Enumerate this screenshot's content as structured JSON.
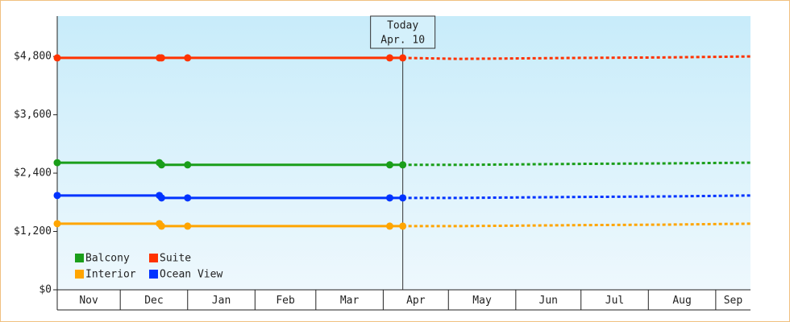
{
  "chart_data": {
    "type": "line",
    "x": [
      0,
      47,
      48,
      60,
      153,
      159,
      185,
      240,
      279,
      319
    ],
    "xlim": [
      0,
      319
    ],
    "xticks": [
      {
        "value": 0,
        "label": "Nov"
      },
      {
        "value": 29,
        "label": "Dec"
      },
      {
        "value": 60,
        "label": "Jan"
      },
      {
        "value": 91,
        "label": "Feb"
      },
      {
        "value": 119,
        "label": "Mar"
      },
      {
        "value": 150,
        "label": "Apr"
      },
      {
        "value": 180,
        "label": "May"
      },
      {
        "value": 211,
        "label": "Jun"
      },
      {
        "value": 241,
        "label": "Jul"
      },
      {
        "value": 272,
        "label": "Aug"
      },
      {
        "value": 303,
        "label": "Sep"
      }
    ],
    "ylim": [
      0,
      5630
    ],
    "yticks": [
      {
        "value": 0,
        "label": "$0"
      },
      {
        "value": 1200,
        "label": "$1,200"
      },
      {
        "value": 2400,
        "label": "$2,400"
      },
      {
        "value": 3600,
        "label": "$3,600"
      },
      {
        "value": 4800,
        "label": "$4,800"
      }
    ],
    "annotation": {
      "label": "Today",
      "date": "Apr. 10",
      "x": 159
    },
    "legend": "lower left",
    "series": [
      {
        "name": "Balcony",
        "color": "#1a9e1a",
        "values": [
          2615,
          2615,
          2570,
          2570,
          2570,
          2570,
          2570,
          2590,
          2600,
          2615
        ]
      },
      {
        "name": "Suite",
        "color": "#ff3300",
        "values": [
          4770,
          4770,
          4770,
          4770,
          4770,
          4770,
          4750,
          4770,
          4780,
          4800
        ]
      },
      {
        "name": "Interior",
        "color": "#ffa500",
        "values": [
          1360,
          1360,
          1310,
          1310,
          1310,
          1310,
          1310,
          1330,
          1340,
          1360
        ]
      },
      {
        "name": "Ocean View",
        "color": "#0033ff",
        "values": [
          1940,
          1940,
          1890,
          1890,
          1890,
          1890,
          1890,
          1910,
          1920,
          1940
        ]
      }
    ]
  }
}
